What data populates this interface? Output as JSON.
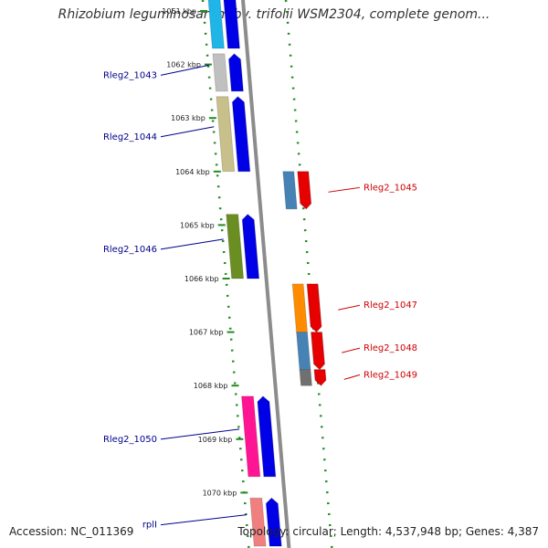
{
  "title": "Rhizobium leguminosarum bv. trifolii WSM2304, complete genom...",
  "footer": {
    "accession": "Accession: NC_011369",
    "topology": "Topology: circular; Length: 4,537,948 bp; Genes: 4,387"
  },
  "colors": {
    "grid": "#228b22",
    "backbone": "#8c8c8c",
    "plus_label": "#00008b",
    "minus_label": "#cc0000"
  },
  "ticks": [
    "1061 kbp",
    "1062 kbp",
    "1063 kbp",
    "1064 kbp",
    "1065 kbp",
    "1066 kbp",
    "1067 kbp",
    "1068 kbp",
    "1069 kbp",
    "1070 kbp"
  ],
  "genes": [
    {
      "label": "",
      "strand": "+",
      "start_kbp": 1060.5,
      "end_kbp": 1061.7,
      "color": "#1fb5e6"
    },
    {
      "label": "Rleg2_1043",
      "strand": "+",
      "start_kbp": 1061.8,
      "end_kbp": 1062.5,
      "color": "#c0c0c0"
    },
    {
      "label": "Rleg2_1044",
      "strand": "+",
      "start_kbp": 1062.6,
      "end_kbp": 1064.0,
      "color": "#c8c08a"
    },
    {
      "label": "Rleg2_1045",
      "strand": "-",
      "start_kbp": 1064.0,
      "end_kbp": 1064.7,
      "color": "#4682b4"
    },
    {
      "label": "Rleg2_1046",
      "strand": "+",
      "start_kbp": 1064.8,
      "end_kbp": 1066.0,
      "color": "#6b8e23"
    },
    {
      "label": "Rleg2_1047",
      "strand": "-",
      "start_kbp": 1066.1,
      "end_kbp": 1067.0,
      "color": "#ff8c00"
    },
    {
      "label": "Rleg2_1048",
      "strand": "-",
      "start_kbp": 1067.0,
      "end_kbp": 1067.7,
      "color": "#4682b4"
    },
    {
      "label": "Rleg2_1049",
      "strand": "-",
      "start_kbp": 1067.7,
      "end_kbp": 1068.0,
      "color": "#707070"
    },
    {
      "label": "Rleg2_1050",
      "strand": "+",
      "start_kbp": 1068.2,
      "end_kbp": 1069.7,
      "color": "#ff1493"
    },
    {
      "label": "rplI",
      "strand": "+",
      "start_kbp": 1070.1,
      "end_kbp": 1071.0,
      "color": "#f08080"
    }
  ]
}
